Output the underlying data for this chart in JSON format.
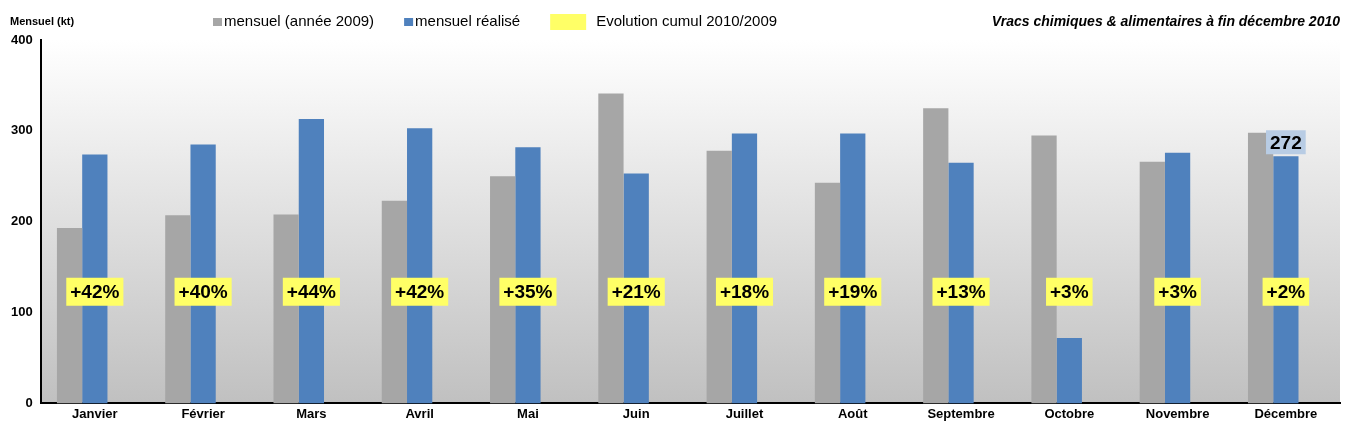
{
  "chart_data": {
    "type": "bar",
    "title": "Vracs chimiques & alimentaires à fin décembre 2010",
    "ylabel": "Mensuel (kt)",
    "categories": [
      "Janvier",
      "Février",
      "Mars",
      "Avril",
      "Mai",
      "Juin",
      "Juillet",
      "Août",
      "Septembre",
      "Octobre",
      "Novembre",
      "Décembre"
    ],
    "series": [
      {
        "name": "mensuel (année 2009)",
        "color": "#a6a6a6",
        "values": [
          193,
          207,
          208,
          223,
          250,
          341,
          278,
          243,
          325,
          295,
          266,
          298
        ]
      },
      {
        "name": "mensuel réalisé",
        "color": "#4f81bd",
        "values": [
          274,
          285,
          313,
          303,
          282,
          253,
          297,
          297,
          265,
          72,
          276,
          272
        ],
        "value_labels": [
          null,
          null,
          null,
          null,
          null,
          null,
          null,
          null,
          null,
          null,
          null,
          "272"
        ]
      },
      {
        "name": "Evolution cumul 2010/2009",
        "color": "#ffff66",
        "values": [
          null,
          null,
          null,
          null,
          null,
          null,
          null,
          null,
          null,
          null,
          null,
          null
        ]
      }
    ],
    "annotations": [
      "+42%",
      "+40%",
      "+44%",
      "+42%",
      "+35%",
      "+21%",
      "+18%",
      "+19%",
      "+13%",
      "+3%",
      "+3%",
      "+2%"
    ],
    "ylim": [
      0,
      400
    ],
    "yticks": [
      0,
      100,
      200,
      300,
      400
    ],
    "grid": false,
    "legend": "top"
  }
}
